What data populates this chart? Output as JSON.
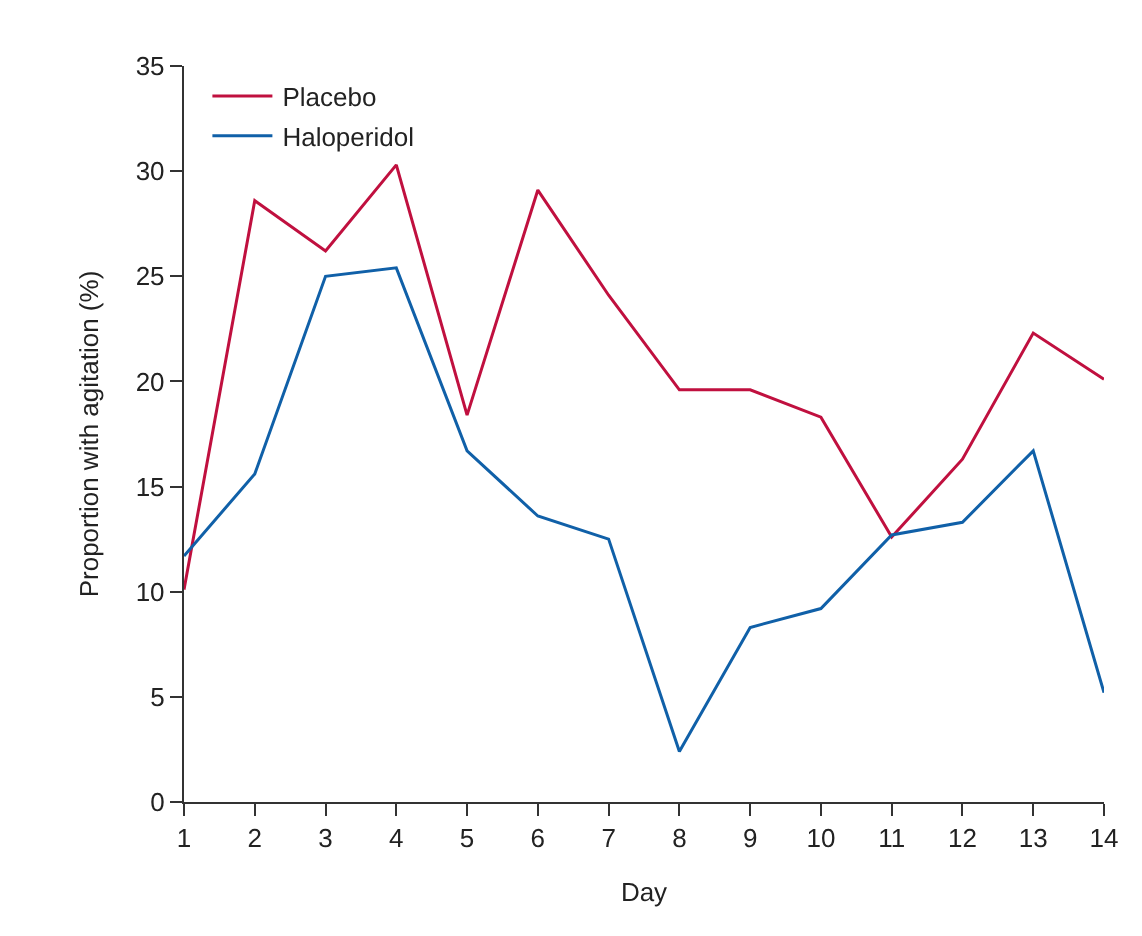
{
  "chart_data": {
    "type": "line",
    "xlabel": "Day",
    "ylabel": "Proportion with agitation (%)",
    "x": [
      1,
      2,
      3,
      4,
      5,
      6,
      7,
      8,
      9,
      10,
      11,
      12,
      13,
      14
    ],
    "xlim": [
      1,
      14
    ],
    "xticks": [
      1,
      2,
      3,
      4,
      5,
      6,
      7,
      8,
      9,
      10,
      11,
      12,
      13,
      14
    ],
    "ylim": [
      0,
      35
    ],
    "yticks": [
      0,
      5,
      10,
      15,
      20,
      25,
      30,
      35
    ],
    "legend": "top left",
    "marker": "none",
    "line_style": "solid",
    "series": [
      {
        "name": "Placebo",
        "color": "#c0103f",
        "values": [
          10.1,
          28.6,
          26.2,
          30.3,
          18.4,
          29.1,
          24.1,
          19.6,
          19.6,
          18.3,
          12.6,
          16.3,
          22.3,
          20.1
        ]
      },
      {
        "name": "Haloperidol",
        "color": "#1060a8",
        "values": [
          11.7,
          15.6,
          25.0,
          25.4,
          16.7,
          13.6,
          12.5,
          2.4,
          8.3,
          9.2,
          12.7,
          13.3,
          16.7,
          5.2
        ]
      }
    ]
  }
}
